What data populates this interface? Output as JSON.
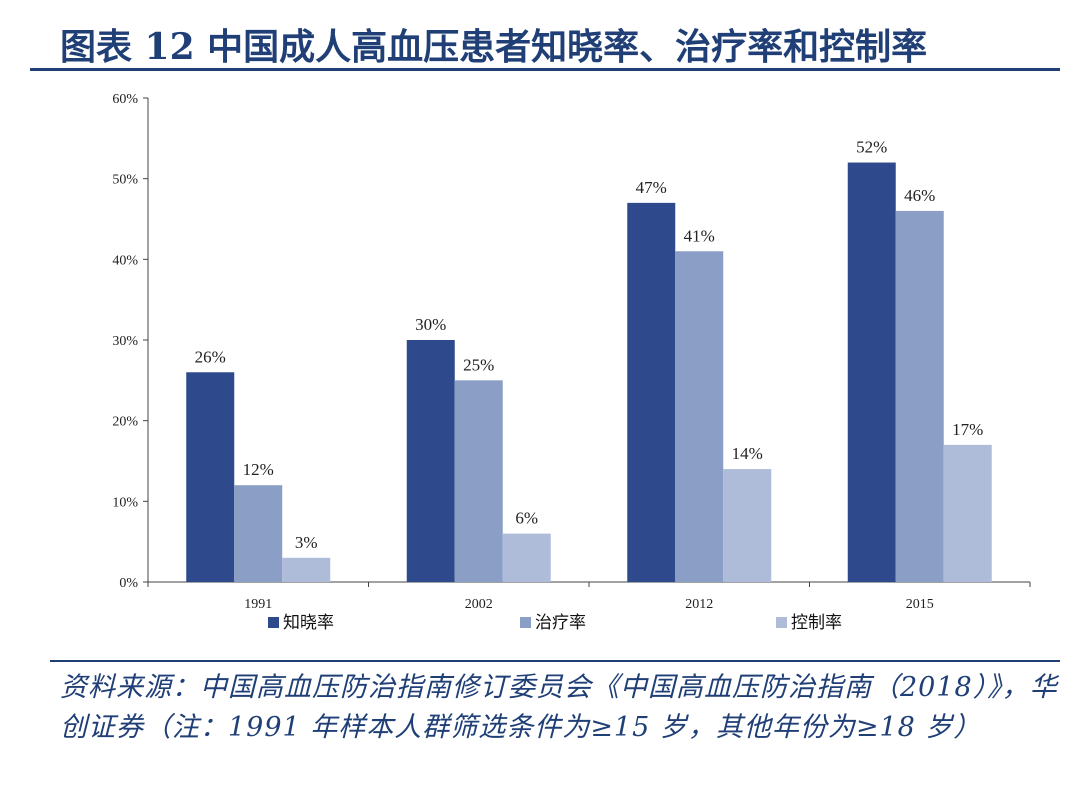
{
  "header": {
    "title": "图表 12 中国成人高血压患者知晓率、治疗率和控制率"
  },
  "chart_data": {
    "type": "bar",
    "categories": [
      "1991",
      "2002",
      "2012",
      "2015"
    ],
    "series": [
      {
        "name": "知晓率",
        "values": [
          26,
          30,
          47,
          52
        ],
        "labels": [
          "26%",
          "30%",
          "47%",
          "52%"
        ],
        "color": "#2e4a8c"
      },
      {
        "name": "治疗率",
        "values": [
          12,
          25,
          41,
          46
        ],
        "labels": [
          "12%",
          "25%",
          "41%",
          "46%"
        ],
        "color": "#8b9fc6"
      },
      {
        "name": "控制率",
        "values": [
          3,
          6,
          14,
          17
        ],
        "labels": [
          "3%",
          "6%",
          "14%",
          "17%"
        ],
        "color": "#aebcd9"
      }
    ],
    "ylim": [
      0,
      60
    ],
    "yticks": [
      0,
      10,
      20,
      30,
      40,
      50,
      60
    ],
    "ytick_labels": [
      "0%",
      "10%",
      "20%",
      "30%",
      "40%",
      "50%",
      "60%"
    ],
    "legend_position": "bottom",
    "grid": false
  },
  "source": {
    "text": "资料来源：中国高血压防治指南修订委员会《中国高血压防治指南（2018）》，华创证券（注：1991 年样本人群筛选条件为≥15 岁，其他年份为≥18 岁）"
  }
}
